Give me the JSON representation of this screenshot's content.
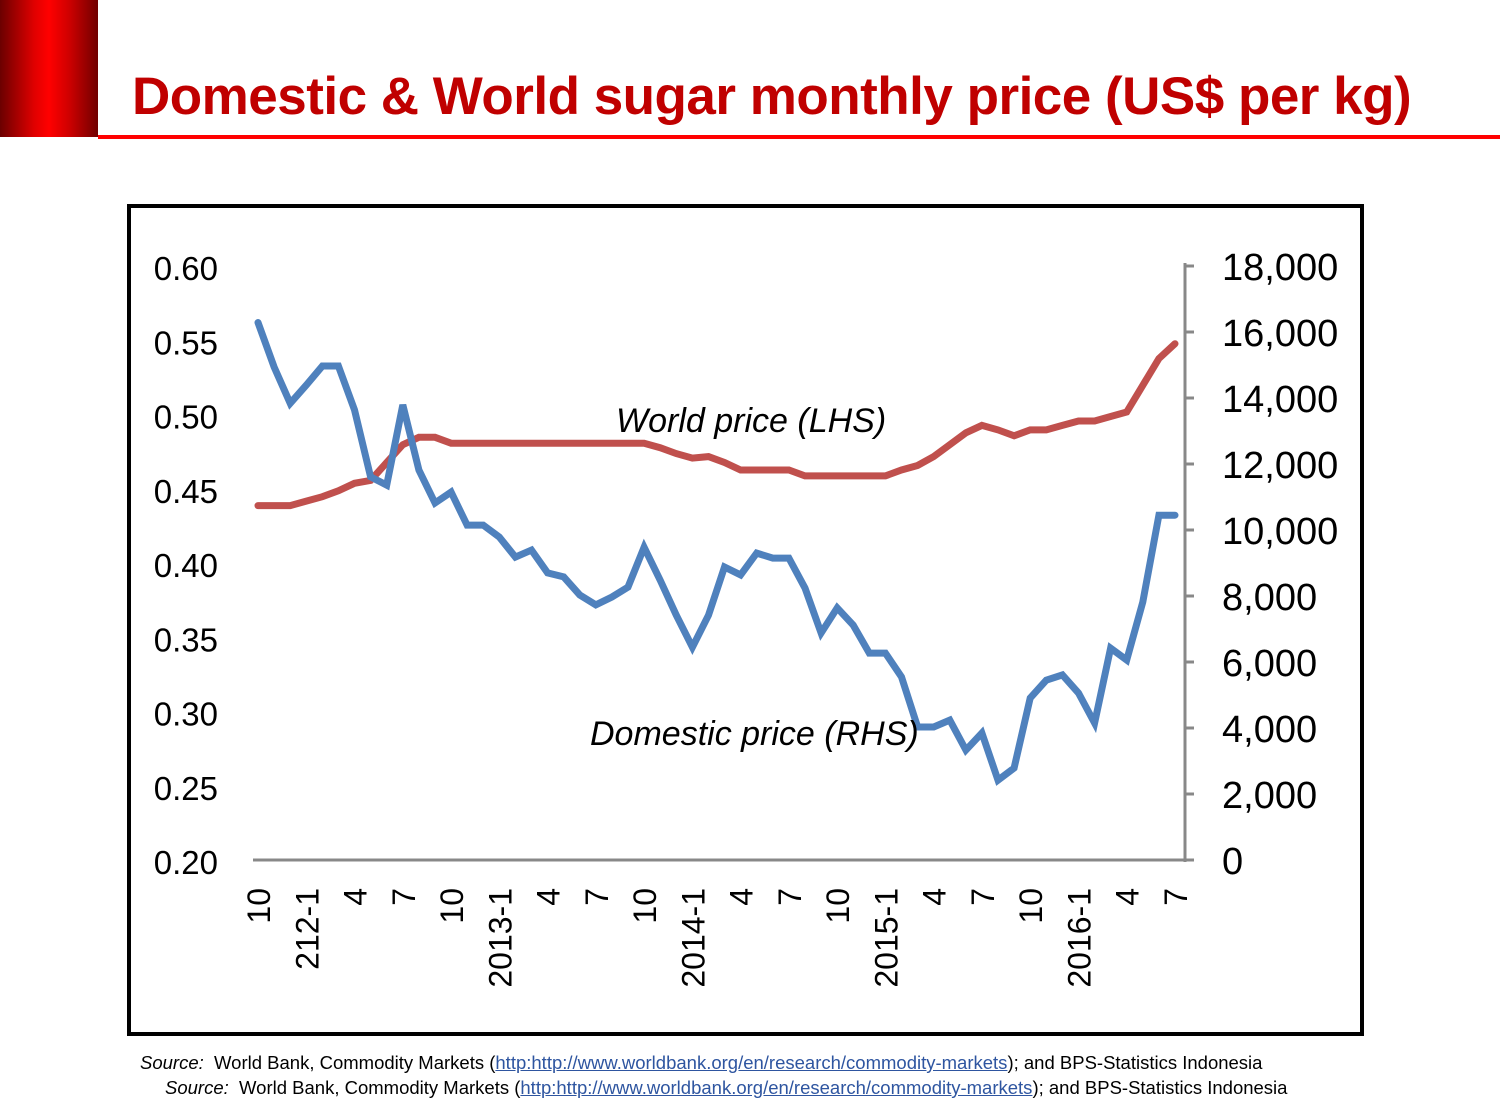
{
  "title": "Domestic & World sugar monthly price (US$ per kg)",
  "colors": {
    "title": "#c00000",
    "world": "#c0504d",
    "domestic": "#4f81bd",
    "axis": "#888888"
  },
  "chart_data": {
    "type": "line",
    "title": "",
    "grid": false,
    "x_months": [
      "2011-10",
      "2011-11",
      "2011-12",
      "2012-1",
      "2012-2",
      "2012-3",
      "2012-4",
      "2012-5",
      "2012-6",
      "2012-7",
      "2012-8",
      "2012-9",
      "2012-10",
      "2012-11",
      "2012-12",
      "2013-1",
      "2013-2",
      "2013-3",
      "2013-4",
      "2013-5",
      "2013-6",
      "2013-7",
      "2013-8",
      "2013-9",
      "2013-10",
      "2013-11",
      "2013-12",
      "2014-1",
      "2014-2",
      "2014-3",
      "2014-4",
      "2014-5",
      "2014-6",
      "2014-7",
      "2014-8",
      "2014-9",
      "2014-10",
      "2014-11",
      "2014-12",
      "2015-1",
      "2015-2",
      "2015-3",
      "2015-4",
      "2015-5",
      "2015-6",
      "2015-7",
      "2015-8",
      "2015-9",
      "2015-10",
      "2015-11",
      "2015-12",
      "2016-1",
      "2016-2",
      "2016-3",
      "2016-4",
      "2016-5",
      "2016-6",
      "2016-7"
    ],
    "x_tick_labels": [
      "10",
      "212-1",
      "4",
      "7",
      "10",
      "2013-1",
      "4",
      "7",
      "10",
      "2014-1",
      "4",
      "7",
      "10",
      "2015-1",
      "4",
      "7",
      "10",
      "2016-1",
      "4",
      "7"
    ],
    "y_left": {
      "range": [
        0.2,
        0.6
      ],
      "ticks": [
        "0.20",
        "0.25",
        "0.30",
        "0.35",
        "0.40",
        "0.45",
        "0.50",
        "0.55",
        "0.60"
      ]
    },
    "y_right": {
      "range": [
        0,
        18000
      ],
      "ticks": [
        "0",
        "2,000",
        "4,000",
        "6,000",
        "8,000",
        "10,000",
        "12,000",
        "14,000",
        "16,000",
        "18,000"
      ]
    },
    "series": [
      {
        "name": "World price (LHS)",
        "axis": "left",
        "color": "#c0504d",
        "values": [
          0.44,
          0.44,
          0.44,
          0.443,
          0.446,
          0.45,
          0.455,
          0.457,
          0.469,
          0.481,
          0.486,
          0.486,
          0.482,
          0.482,
          0.482,
          0.482,
          0.482,
          0.482,
          0.482,
          0.482,
          0.482,
          0.482,
          0.482,
          0.482,
          0.482,
          0.479,
          0.475,
          0.472,
          0.473,
          0.469,
          0.464,
          0.464,
          0.464,
          0.464,
          0.46,
          0.46,
          0.46,
          0.46,
          0.46,
          0.46,
          0.464,
          0.467,
          0.473,
          0.481,
          0.489,
          0.494,
          0.491,
          0.487,
          0.491,
          0.491,
          0.494,
          0.497,
          0.497,
          0.5,
          0.503,
          0.521,
          0.539,
          0.549
        ]
      },
      {
        "name": "Domestic price (RHS)",
        "axis": "right",
        "color": "#4f81bd",
        "values": [
          16350,
          15000,
          13900,
          14450,
          15030,
          15030,
          13700,
          11670,
          11420,
          13850,
          11880,
          10880,
          11210,
          10210,
          10210,
          9850,
          9240,
          9450,
          8760,
          8640,
          8090,
          7790,
          8030,
          8330,
          9540,
          8540,
          7480,
          6510,
          7480,
          8940,
          8700,
          9360,
          9210,
          9210,
          8300,
          6940,
          7700,
          7180,
          6330,
          6330,
          5610,
          4090,
          4090,
          4300,
          3390,
          3910,
          2480,
          2850,
          4970,
          5510,
          5670,
          5120,
          4210,
          6480,
          6120,
          7880,
          10510,
          10510
        ]
      }
    ]
  },
  "source_lines": [
    {
      "label": "Source:",
      "pre": "  World Bank, Commodity Markets (",
      "link": "http:http://www.worldbank.org/en/research/commodity-markets",
      "post": "); and BPS-Statistics Indonesia"
    },
    {
      "label": "Source:",
      "pre": "  World Bank, Commodity Markets (",
      "link": "http:http://www.worldbank.org/en/research/commodity-markets",
      "post": "); and BPS-Statistics Indonesia"
    }
  ]
}
